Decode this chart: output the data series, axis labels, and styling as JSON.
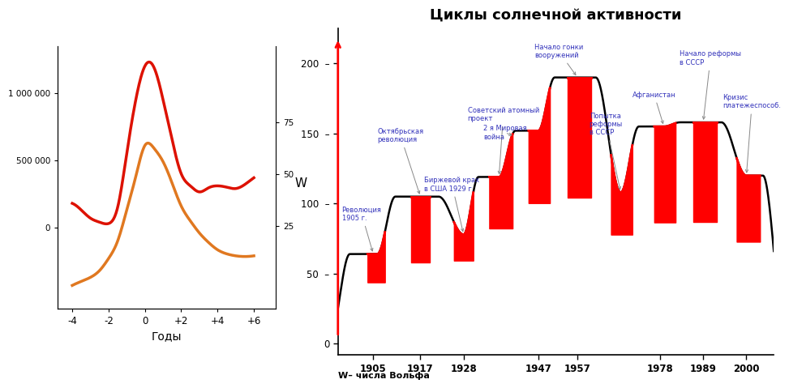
{
  "left_chart": {
    "xlabel": "Годы",
    "right_ylabel": "W",
    "left_yticks": [
      0,
      500000,
      1000000
    ],
    "left_yticklabels": [
      "0",
      "500 000",
      "1 000 000"
    ],
    "right_yticks": [
      25,
      50,
      75
    ],
    "right_yticklabels": [
      "25",
      "50",
      "75"
    ],
    "xticks": [
      -4,
      -2,
      0,
      2,
      4,
      6
    ],
    "xticklabels": [
      "-4",
      "-2",
      "0",
      "+2",
      "+4",
      "+6"
    ],
    "xlim": [
      -4.8,
      7.2
    ],
    "left_ylim": [
      -600000,
      1350000
    ],
    "right_ylim": [
      -15,
      112
    ],
    "red_x": [
      -4.0,
      -3.5,
      -3.0,
      -2.5,
      -2.0,
      -1.5,
      -1.0,
      -0.5,
      0.0,
      0.5,
      1.0,
      1.5,
      2.0,
      2.5,
      3.0,
      3.5,
      4.0,
      4.5,
      5.0,
      5.5,
      6.0
    ],
    "red_y": [
      180000,
      130000,
      70000,
      40000,
      30000,
      150000,
      550000,
      950000,
      1200000,
      1190000,
      950000,
      650000,
      400000,
      310000,
      265000,
      295000,
      310000,
      300000,
      290000,
      320000,
      370000
    ],
    "orange_x": [
      -4.0,
      -3.5,
      -3.0,
      -2.5,
      -2.0,
      -1.5,
      -1.0,
      -0.5,
      0.0,
      0.5,
      1.0,
      1.5,
      2.0,
      2.5,
      3.0,
      3.5,
      4.0,
      4.5,
      5.0,
      5.5,
      6.0
    ],
    "orange_y": [
      -430000,
      -400000,
      -370000,
      -320000,
      -230000,
      -100000,
      130000,
      380000,
      610000,
      590000,
      490000,
      330000,
      160000,
      50000,
      -40000,
      -110000,
      -165000,
      -195000,
      -210000,
      -215000,
      -210000
    ],
    "red_color": "#dd1100",
    "orange_color": "#e07820"
  },
  "right_chart": {
    "title": "Циклы солнечной активности",
    "xlabel_bottom": "W– числа Вольфа",
    "yticks": [
      0,
      50,
      100,
      150,
      200
    ],
    "xtick_years": [
      1905,
      1917,
      1928,
      1947,
      1957,
      1978,
      1989,
      2000
    ],
    "xlim": [
      1896,
      2007
    ],
    "ylim": [
      -8,
      225
    ],
    "cycle_peaks": [
      [
        1894,
        5
      ],
      [
        1906,
        64
      ],
      [
        1917,
        105
      ],
      [
        1928,
        78
      ],
      [
        1937,
        119
      ],
      [
        1947,
        152
      ],
      [
        1957,
        190
      ],
      [
        1968,
        108
      ],
      [
        1979,
        155
      ],
      [
        1989,
        158
      ],
      [
        2000,
        120
      ],
      [
        2010,
        5
      ]
    ],
    "red_peak_ranges": [
      [
        1903.5,
        1908.0
      ],
      [
        1914.5,
        1919.5
      ],
      [
        1925.5,
        1930.5
      ],
      [
        1934.5,
        1940.5
      ],
      [
        1944.5,
        1950.0
      ],
      [
        1954.5,
        1960.5
      ],
      [
        1965.5,
        1971.0
      ],
      [
        1976.5,
        1982.0
      ],
      [
        1986.5,
        1992.5
      ],
      [
        1997.5,
        2003.5
      ]
    ],
    "annotations": [
      {
        "text": "Революция\n1905 г.",
        "xd": 1905,
        "yd": 64,
        "xt": 1897,
        "yt": 87
      },
      {
        "text": "Октябрьская\nреволюция",
        "xd": 1917,
        "yd": 105,
        "xt": 1906,
        "yt": 143
      },
      {
        "text": "Биржевой крах\nв США 1929 г.",
        "xd": 1928,
        "yd": 78,
        "xt": 1918,
        "yt": 108
      },
      {
        "text": "Советский атомный\nпроект",
        "xd": 1937,
        "yd": 119,
        "xt": 1929,
        "yt": 158
      },
      {
        "text": "2 я Мировая\nвойна",
        "xd": 1941,
        "yd": 148,
        "xt": 1933,
        "yt": 145
      },
      {
        "text": "Начало гонки\nвооружений",
        "xd": 1957,
        "yd": 190,
        "xt": 1946,
        "yt": 203
      },
      {
        "text": "Попытка\nреформы\nв СССР",
        "xd": 1968,
        "yd": 108,
        "xt": 1960,
        "yt": 148
      },
      {
        "text": "Афганистан",
        "xd": 1979,
        "yd": 155,
        "xt": 1971,
        "yt": 175
      },
      {
        "text": "Начало реформы\nв СССР",
        "xd": 1989,
        "yd": 158,
        "xt": 1983,
        "yt": 198
      },
      {
        "text": "Кризис\nплатежеспособ.",
        "xd": 2000,
        "yd": 120,
        "xt": 1994,
        "yt": 167
      }
    ]
  }
}
